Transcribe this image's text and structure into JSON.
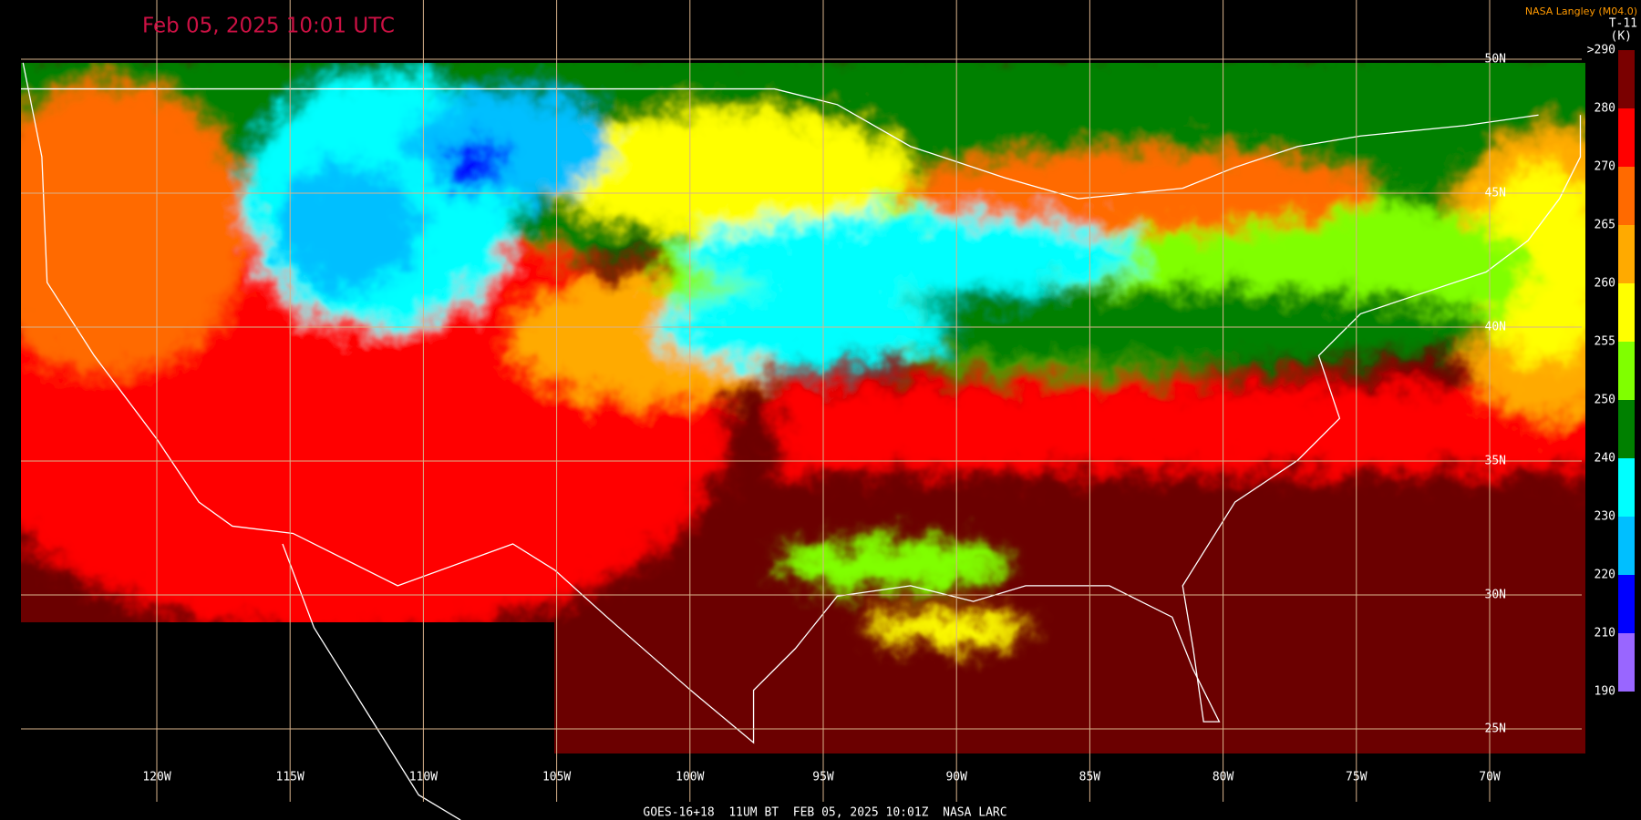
{
  "title": "Feb 05, 2025 10:01 UTC",
  "credit": "NASA Langley (M04.0)",
  "product": "T-11",
  "unit": "(K)",
  "footer": "GOES-16+18  11UM BT  FEB 05, 2025 10:01Z  NASA LARC",
  "latitudes": [
    {
      "value": 50,
      "label": "50N"
    },
    {
      "value": 45,
      "label": "45N"
    },
    {
      "value": 40,
      "label": "40N"
    },
    {
      "value": 35,
      "label": "35N"
    },
    {
      "value": 30,
      "label": "30N"
    },
    {
      "value": 25,
      "label": "25N"
    }
  ],
  "longitudes": [
    {
      "value": -120,
      "label": "120W"
    },
    {
      "value": -115,
      "label": "115W"
    },
    {
      "value": -110,
      "label": "110W"
    },
    {
      "value": -105,
      "label": "105W"
    },
    {
      "value": -100,
      "label": "100W"
    },
    {
      "value": -95,
      "label": "95W"
    },
    {
      "value": -90,
      "label": "90W"
    },
    {
      "value": -85,
      "label": "85W"
    },
    {
      "value": -80,
      "label": "80W"
    },
    {
      "value": -75,
      "label": "75W"
    },
    {
      "value": -70,
      "label": "70W"
    }
  ],
  "colorbar": {
    "labels": [
      ">290",
      "280",
      "270",
      "265",
      "260",
      "255",
      "250",
      "240",
      "230",
      "220",
      "210",
      "190"
    ],
    "colors": [
      "#7a0000",
      "#ff0000",
      "#ff6a00",
      "#ffaa00",
      "#ffff00",
      "#80ff00",
      "#008000",
      "#00ffff",
      "#00bfff",
      "#0000ff",
      "#9966ff"
    ]
  }
}
